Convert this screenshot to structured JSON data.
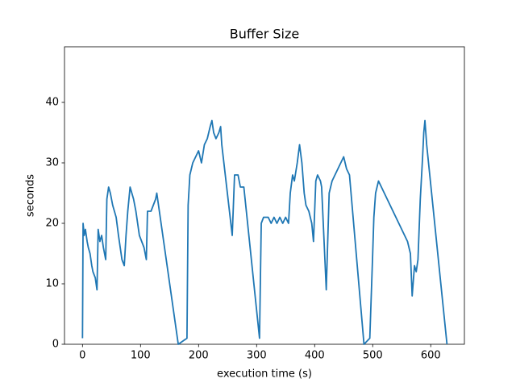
{
  "chart_data": {
    "type": "line",
    "title": "Buffer Size",
    "x_label": "execution time (s)",
    "y_label": "seconds",
    "x": [
      0,
      1,
      3,
      5,
      8,
      10,
      13,
      16,
      18,
      22,
      25,
      27,
      30,
      33,
      36,
      38,
      40,
      42,
      45,
      48,
      52,
      55,
      58,
      62,
      65,
      68,
      72,
      75,
      78,
      82,
      85,
      88,
      92,
      95,
      98,
      102,
      106,
      110,
      112,
      118,
      122,
      126,
      128,
      165,
      180,
      182,
      185,
      190,
      195,
      200,
      205,
      210,
      215,
      220,
      223,
      226,
      230,
      235,
      238,
      240,
      258,
      262,
      268,
      272,
      278,
      305,
      308,
      312,
      320,
      325,
      330,
      335,
      340,
      345,
      350,
      355,
      358,
      362,
      365,
      370,
      374,
      378,
      382,
      385,
      390,
      395,
      398,
      402,
      405,
      410,
      412,
      420,
      425,
      430,
      435,
      440,
      445,
      450,
      455,
      460,
      485,
      495,
      500,
      502,
      505,
      510,
      515,
      520,
      525,
      530,
      535,
      540,
      545,
      550,
      555,
      560,
      565,
      568,
      572,
      575,
      578,
      582,
      586,
      588,
      590,
      593,
      628
    ],
    "values": [
      1,
      20,
      18,
      19,
      17,
      16,
      15,
      13,
      12,
      11,
      9,
      19,
      17,
      18,
      16,
      15,
      14,
      24,
      26,
      25,
      23,
      22,
      21,
      18,
      16,
      14,
      13,
      18,
      22,
      26,
      25,
      24,
      22,
      20,
      18,
      17,
      16,
      14,
      22,
      22,
      23,
      24,
      25,
      0,
      1,
      23,
      28,
      30,
      31,
      32,
      30,
      33,
      34,
      36,
      37,
      35,
      34,
      35,
      36,
      33,
      18,
      28,
      28,
      26,
      26,
      1,
      20,
      21,
      21,
      20,
      21,
      20,
      21,
      20,
      21,
      20,
      25,
      28,
      27,
      30,
      33,
      30,
      25,
      23,
      22,
      20,
      17,
      27,
      28,
      27,
      26,
      9,
      25,
      27,
      28,
      29,
      30,
      31,
      29,
      28,
      0,
      1,
      15,
      21,
      25,
      27,
      26,
      25,
      24,
      23,
      22,
      21,
      20,
      19,
      18,
      17,
      15,
      8,
      13,
      12,
      14,
      24,
      31,
      35,
      37,
      33,
      0
    ],
    "color": "#1f77b4",
    "xlim": [
      -31,
      658
    ],
    "ylim": [
      0,
      49.2
    ],
    "xticks": [
      0,
      100,
      200,
      300,
      400,
      500,
      600
    ],
    "yticks": [
      0,
      10,
      20,
      30,
      40
    ]
  }
}
